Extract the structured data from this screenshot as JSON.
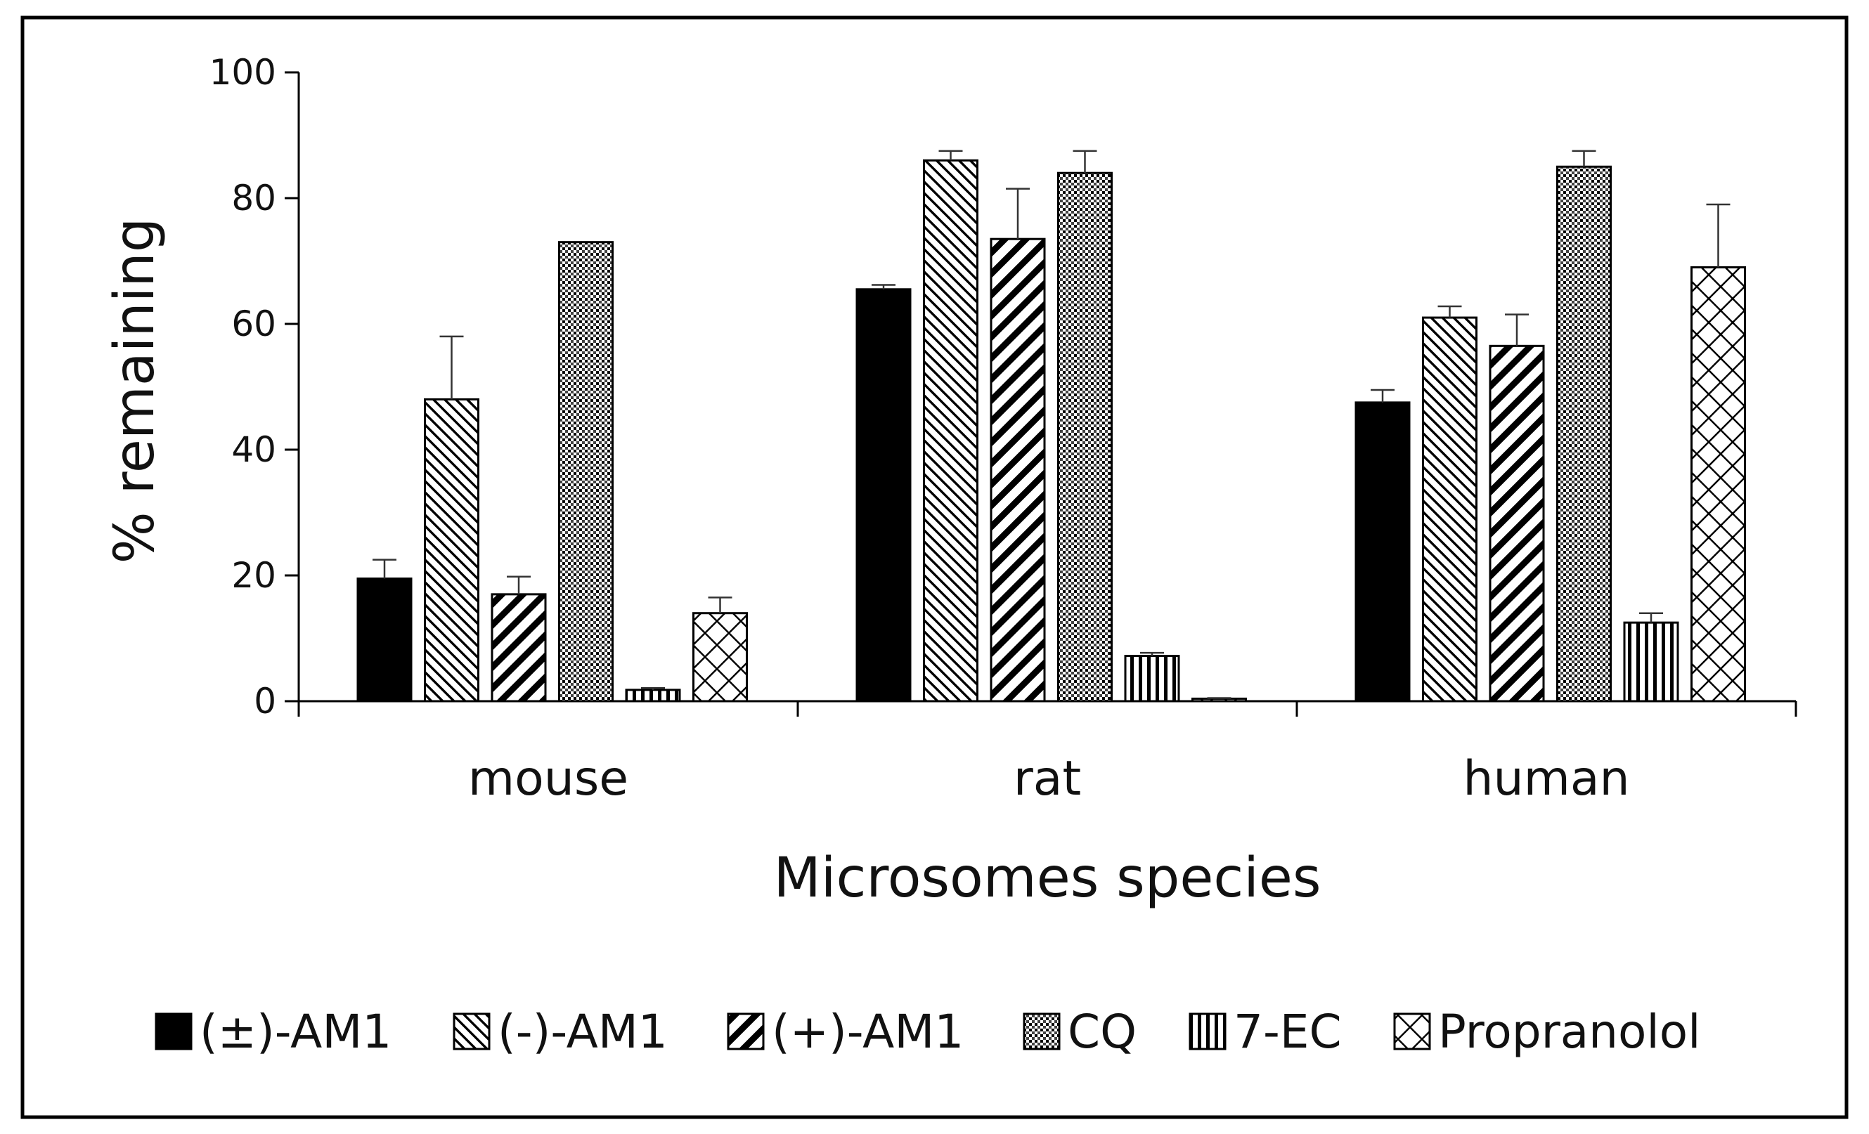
{
  "chart_data": {
    "type": "bar",
    "title": "",
    "xlabel": "Microsomes species",
    "ylabel": "% remaining",
    "categories": [
      "mouse",
      "rat",
      "human"
    ],
    "ylim": [
      0,
      100
    ],
    "yticks": [
      0,
      20,
      40,
      60,
      80,
      100
    ],
    "grid": false,
    "legend_position": "bottom",
    "series": [
      {
        "name": "(±)-AM1",
        "values": [
          19.5,
          65.5,
          47.5
        ],
        "errors": [
          3,
          0.7,
          2
        ],
        "pattern": "solid"
      },
      {
        "name": "(-)-AM1",
        "values": [
          48,
          86,
          61
        ],
        "errors": [
          10,
          1.5,
          1.8
        ],
        "pattern": "diag-back"
      },
      {
        "name": "(+)-AM1",
        "values": [
          17,
          73.5,
          56.5
        ],
        "errors": [
          2.8,
          8,
          5
        ],
        "pattern": "diag-fwd"
      },
      {
        "name": "CQ",
        "values": [
          73,
          84,
          85
        ],
        "errors": [
          0,
          3.5,
          2.5
        ],
        "pattern": "dots"
      },
      {
        "name": "7-EC",
        "values": [
          1.8,
          7.2,
          12.5
        ],
        "errors": [
          0.3,
          0.5,
          1.5
        ],
        "pattern": "vertical"
      },
      {
        "name": "Propranolol",
        "values": [
          14,
          0.4,
          69
        ],
        "errors": [
          2.5,
          0.1,
          10
        ],
        "pattern": "crosshatch"
      }
    ]
  },
  "colors": {
    "bar_edge": "#000000",
    "text": "#111111",
    "frame": "#000000"
  }
}
